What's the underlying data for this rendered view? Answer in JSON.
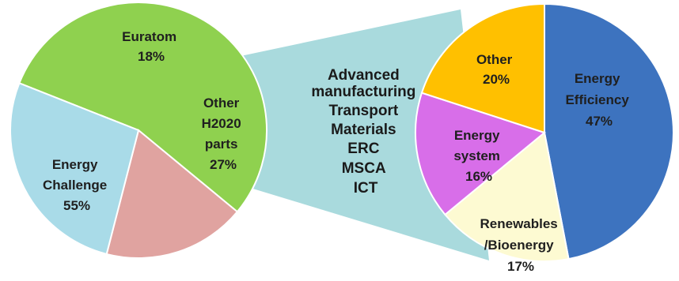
{
  "colors": {
    "connector": "#a9dadd",
    "euratom": "#e0a3a0",
    "other_h2020": "#a9dbe8",
    "energy_challenge": "#8fd14f",
    "other": "#ffc000",
    "energy_system": "#d86ee9",
    "renewables": "#fdfad2",
    "energy_efficiency": "#3d73bf"
  },
  "chart_data": [
    {
      "type": "pie",
      "slices": [
        {
          "key": "energy_challenge",
          "label_lines": [
            "Energy",
            "Challenge"
          ],
          "pct_label": "55%",
          "value": 55,
          "color": "#8fd14f"
        },
        {
          "key": "euratom",
          "label_lines": [
            "Euratom"
          ],
          "pct_label": "18%",
          "value": 18,
          "color": "#e0a3a0"
        },
        {
          "key": "other_h2020",
          "label_lines": [
            "Other",
            "H2020",
            "parts"
          ],
          "pct_label": "27%",
          "value": 27,
          "color": "#a9dbe8"
        }
      ]
    },
    {
      "type": "pie",
      "slices": [
        {
          "key": "energy_efficiency",
          "label_lines": [
            "Energy",
            "Efficiency"
          ],
          "pct_label": "47%",
          "value": 47,
          "color": "#3d73bf"
        },
        {
          "key": "renewables",
          "label_lines": [
            "Renewables",
            "/Bioenergy"
          ],
          "pct_label": "17%",
          "value": 17,
          "color": "#fdfad2"
        },
        {
          "key": "energy_system",
          "label_lines": [
            "Energy",
            "system"
          ],
          "pct_label": "16%",
          "value": 16,
          "color": "#d86ee9"
        },
        {
          "key": "other",
          "label_lines": [
            "Other"
          ],
          "pct_label": "20%",
          "value": 20,
          "color": "#ffc000"
        }
      ]
    }
  ],
  "connector_list": [
    "Advanced",
    "manufacturing",
    "Transport",
    "Materials",
    "ERC",
    "MSCA",
    "ICT"
  ]
}
